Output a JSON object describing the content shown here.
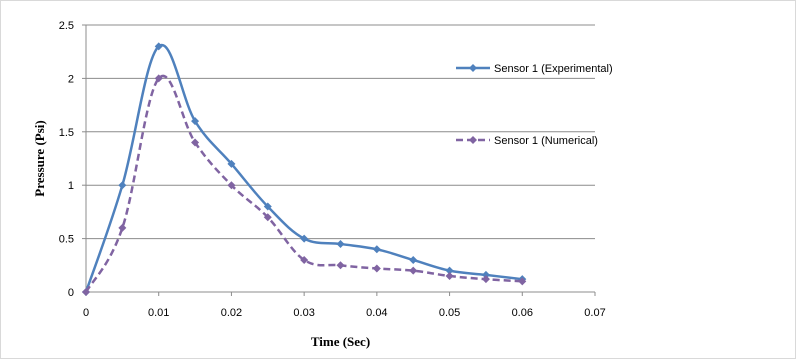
{
  "chart_data": {
    "type": "line",
    "xlabel": "Time (Sec)",
    "ylabel": "Pressure (Psi)",
    "xlim": [
      0,
      0.07
    ],
    "ylim": [
      0,
      2.5
    ],
    "x_ticks": [
      "0",
      "0.01",
      "0.02",
      "0.03",
      "0.04",
      "0.05",
      "0.06",
      "0.07"
    ],
    "y_ticks": [
      "0",
      "0.5",
      "1",
      "1.5",
      "2",
      "2.5"
    ],
    "grid": "horizontal",
    "legend_position": "right",
    "series": [
      {
        "name": "Sensor 1 (Experimental)",
        "color": "#4F81BD",
        "style": "solid",
        "marker": "diamond",
        "x": [
          0,
          0.005,
          0.01,
          0.015,
          0.02,
          0.025,
          0.03,
          0.035,
          0.04,
          0.045,
          0.05,
          0.055,
          0.06
        ],
        "y": [
          0,
          1.0,
          2.3,
          1.6,
          1.2,
          0.8,
          0.5,
          0.45,
          0.4,
          0.3,
          0.2,
          0.16,
          0.12
        ]
      },
      {
        "name": "Sensor 1 (Numerical)",
        "color": "#8064A2",
        "style": "dashed",
        "marker": "diamond",
        "x": [
          0,
          0.005,
          0.01,
          0.015,
          0.02,
          0.025,
          0.03,
          0.035,
          0.04,
          0.045,
          0.05,
          0.055,
          0.06
        ],
        "y": [
          0,
          0.6,
          2.0,
          1.4,
          1.0,
          0.7,
          0.3,
          0.25,
          0.22,
          0.2,
          0.15,
          0.12,
          0.1
        ]
      }
    ]
  }
}
